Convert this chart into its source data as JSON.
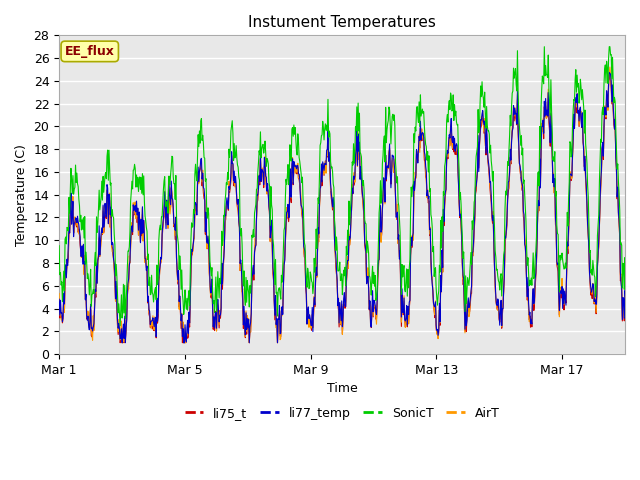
{
  "title": "Instument Temperatures",
  "xlabel": "Time",
  "ylabel": "Temperature (C)",
  "ylim": [
    0,
    28
  ],
  "yticks": [
    0,
    2,
    4,
    6,
    8,
    10,
    12,
    14,
    16,
    18,
    20,
    22,
    24,
    26,
    28
  ],
  "xtick_labels": [
    "Mar 1",
    "Mar 5",
    "Mar 9",
    "Mar 13",
    "Mar 17"
  ],
  "xtick_positions": [
    0,
    4,
    8,
    12,
    16
  ],
  "fig_bg_color": "#ffffff",
  "plot_bg_color": "#e8e8e8",
  "grid_color": "#ffffff",
  "colors": {
    "li75_t": "#cc0000",
    "li77_temp": "#0000cc",
    "SonicT": "#00cc00",
    "AirT": "#ff9900"
  },
  "annotation_text": "EE_flux",
  "annotation_bg": "#ffffaa",
  "annotation_border": "#aaaa00"
}
